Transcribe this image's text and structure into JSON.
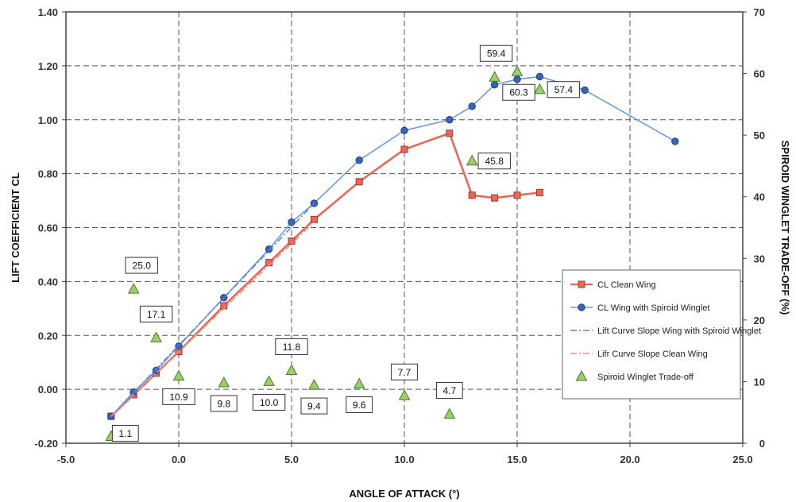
{
  "chart_data": {
    "type": "line",
    "xlabel": "ANGLE OF ATTACK (°)",
    "ylabel": "LIFT COEFFICIENT CL",
    "y2label": "SPIROID WINGLET TRADE-OFF (%)",
    "xlim": [
      -5,
      25
    ],
    "ylim": [
      -0.2,
      1.4
    ],
    "y2lim": [
      0,
      70
    ],
    "xticks": [
      "-5.0",
      "0.0",
      "5.0",
      "10.0",
      "15.0",
      "20.0",
      "25.0"
    ],
    "yticks": [
      "-0.20",
      "0.00",
      "0.20",
      "0.40",
      "0.60",
      "0.80",
      "1.00",
      "1.20",
      "1.40"
    ],
    "y2ticks": [
      "0",
      "10",
      "20",
      "30",
      "40",
      "50",
      "60",
      "70"
    ],
    "grid": true,
    "legend_position": "center-right",
    "series": [
      {
        "name": "CL Clean Wing",
        "kind": "line-square",
        "color": "#e8695c",
        "points": [
          [
            -3,
            -0.1
          ],
          [
            -2,
            -0.02
          ],
          [
            -1,
            0.06
          ],
          [
            0,
            0.14
          ],
          [
            2,
            0.31
          ],
          [
            4,
            0.47
          ],
          [
            5,
            0.55
          ],
          [
            6,
            0.63
          ],
          [
            8,
            0.77
          ],
          [
            10,
            0.89
          ],
          [
            12,
            0.95
          ],
          [
            13,
            0.72
          ],
          [
            14,
            0.71
          ],
          [
            15,
            0.72
          ],
          [
            16,
            0.73
          ]
        ]
      },
      {
        "name": "CL Wing with Spiroid Winglet",
        "kind": "line-circle",
        "color": "#6d9be0",
        "points": [
          [
            -3,
            -0.1
          ],
          [
            -2,
            -0.01
          ],
          [
            -1,
            0.07
          ],
          [
            0,
            0.16
          ],
          [
            2,
            0.34
          ],
          [
            4,
            0.52
          ],
          [
            5,
            0.62
          ],
          [
            6,
            0.69
          ],
          [
            8,
            0.85
          ],
          [
            10,
            0.96
          ],
          [
            12,
            1.0
          ],
          [
            13,
            1.05
          ],
          [
            14,
            1.13
          ],
          [
            15,
            1.15
          ],
          [
            16,
            1.16
          ],
          [
            18,
            1.11
          ],
          [
            22,
            0.92
          ]
        ]
      },
      {
        "name": "Lift Curve Slope Wing with Spiroid Winglet",
        "kind": "dashdot",
        "color": "#5b86d6",
        "points": [
          [
            -3,
            -0.1
          ],
          [
            6,
            0.69
          ]
        ]
      },
      {
        "name": "Lifr Curve Slope Clean Wing",
        "kind": "dashdot",
        "color": "#f0907f",
        "points": [
          [
            -3,
            -0.1
          ],
          [
            6,
            0.62
          ]
        ]
      },
      {
        "name": "Spiroid Winglet Trade-off",
        "kind": "triangle",
        "color": "#9ccf6c",
        "points": [
          [
            -3,
            1.1
          ],
          [
            -2,
            25.0
          ],
          [
            -1,
            17.1
          ],
          [
            0,
            10.9
          ],
          [
            2,
            9.8
          ],
          [
            4,
            10.0
          ],
          [
            5,
            11.8
          ],
          [
            6,
            9.4
          ],
          [
            8,
            9.6
          ],
          [
            10,
            7.7
          ],
          [
            12,
            4.7
          ],
          [
            13,
            45.8
          ],
          [
            14,
            59.4
          ],
          [
            15,
            60.3
          ],
          [
            16,
            57.4
          ]
        ],
        "labels": [
          {
            "text": "1.1",
            "dx": 18,
            "dy": -4
          },
          {
            "text": "25.0",
            "dx": 10,
            "dy": -30
          },
          {
            "text": "17.1",
            "dx": 0,
            "dy": -30
          },
          {
            "text": "10.9",
            "dx": 0,
            "dy": 26
          },
          {
            "text": "9.8",
            "dx": 0,
            "dy": 26
          },
          {
            "text": "10.0",
            "dx": 0,
            "dy": 26
          },
          {
            "text": "11.8",
            "dx": 0,
            "dy": -30
          },
          {
            "text": "9.4",
            "dx": 0,
            "dy": 26
          },
          {
            "text": "9.6",
            "dx": 0,
            "dy": 26
          },
          {
            "text": "7.7",
            "dx": 0,
            "dy": -30
          },
          {
            "text": "4.7",
            "dx": 0,
            "dy": -30
          },
          {
            "text": "45.8",
            "dx": 28,
            "dy": 0
          },
          {
            "text": "59.4",
            "dx": 2,
            "dy": -30
          },
          {
            "text": "60.3",
            "dx": 2,
            "dy": 26
          },
          {
            "text": "57.4",
            "dx": 30,
            "dy": 0
          }
        ]
      }
    ]
  }
}
